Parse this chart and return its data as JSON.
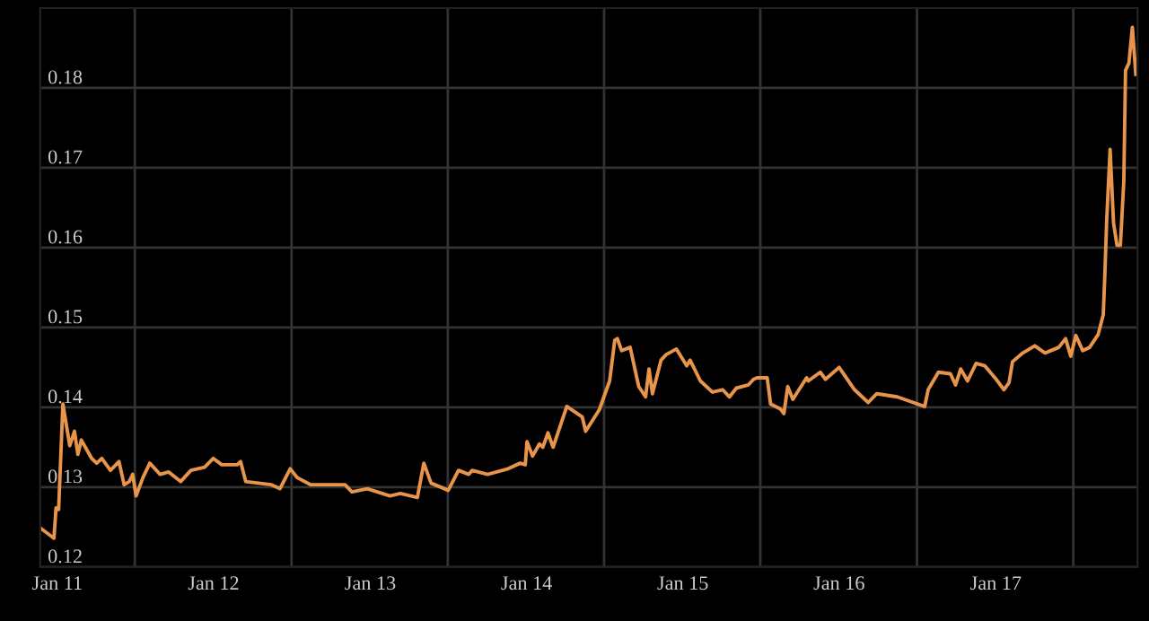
{
  "chart_data": {
    "type": "line",
    "color": "#e8944a",
    "x": [
      "2010-11-22",
      "2010-12-24",
      "2010-12-29",
      "2011-01-04",
      "2011-01-14",
      "2011-01-30",
      "2011-02-10",
      "2011-02-18",
      "2011-02-26",
      "2011-03-22",
      "2011-04-03",
      "2011-04-15",
      "2011-05-05",
      "2011-05-25",
      "2011-06-06",
      "2011-06-18",
      "2011-06-26",
      "2011-07-04",
      "2011-07-20",
      "2011-08-05",
      "2011-08-29",
      "2011-09-18",
      "2011-10-16",
      "2011-11-09",
      "2011-12-11",
      "2011-12-31",
      "2012-01-20",
      "2012-02-25",
      "2012-03-04",
      "2012-03-16",
      "2012-05-15",
      "2012-06-04",
      "2012-06-28",
      "2012-07-14",
      "2012-08-15",
      "2012-11-03",
      "2012-11-19",
      "2012-12-25",
      "2013-02-16",
      "2013-03-12",
      "2013-04-21",
      "2013-05-06",
      "2013-05-23",
      "2013-07-02",
      "2013-07-26",
      "2013-08-19",
      "2013-08-27",
      "2013-10-02",
      "2013-11-19",
      "2013-12-17",
      "2013-12-29",
      "2014-01-02",
      "2014-01-15",
      "2014-01-31",
      "2014-02-08",
      "2014-02-20",
      "2014-03-04",
      "2014-04-05",
      "2014-05-11",
      "2014-05-19",
      "2014-06-20",
      "2014-07-14",
      "2014-07-26",
      "2014-08-01",
      "2014-08-11",
      "2014-08-31",
      "2014-09-20",
      "2014-10-06",
      "2014-10-14",
      "2014-10-22",
      "2014-11-11",
      "2014-11-23",
      "2014-12-17",
      "2015-01-10",
      "2015-01-18",
      "2015-02-11",
      "2015-03-11",
      "2015-04-04",
      "2015-04-20",
      "2015-05-06",
      "2015-06-03",
      "2015-06-15",
      "2015-06-23",
      "2015-07-01",
      "2015-07-17",
      "2015-07-25",
      "2015-08-17",
      "2015-08-25",
      "2015-09-03",
      "2015-09-15",
      "2015-10-17",
      "2015-10-21",
      "2015-11-18",
      "2015-11-30",
      "2016-01-01",
      "2016-02-06",
      "2016-03-09",
      "2016-03-29",
      "2016-05-16",
      "2016-07-03",
      "2016-07-19",
      "2016-07-27",
      "2016-08-20",
      "2016-09-17",
      "2016-09-29",
      "2016-10-11",
      "2016-10-27",
      "2016-11-16",
      "2016-12-06",
      "2016-12-30",
      "2017-01-20",
      "2017-02-01",
      "2017-02-09",
      "2017-03-05",
      "2017-04-02",
      "2017-04-26",
      "2017-05-28",
      "2017-06-13",
      "2017-06-25",
      "2017-07-07",
      "2017-07-23",
      "2017-08-08",
      "2017-08-28",
      "2017-09-09",
      "2017-09-13",
      "2017-09-17",
      "2017-09-25",
      "2017-10-03",
      "2017-10-11",
      "2017-10-19",
      "2017-10-27",
      "2017-10-31",
      "2017-11-08",
      "2017-11-16",
      "2017-11-24"
    ],
    "values": [
      0.1249,
      0.1236,
      0.1274,
      0.1272,
      0.1404,
      0.1352,
      0.137,
      0.1341,
      0.1359,
      0.1336,
      0.133,
      0.1336,
      0.1321,
      0.1332,
      0.1303,
      0.1307,
      0.1316,
      0.1289,
      0.1312,
      0.133,
      0.1316,
      0.1319,
      0.1307,
      0.1321,
      0.1325,
      0.1336,
      0.1328,
      0.1328,
      0.1332,
      0.1307,
      0.1303,
      0.1298,
      0.1323,
      0.1312,
      0.1303,
      0.1303,
      0.1294,
      0.1298,
      0.1289,
      0.1292,
      0.1287,
      0.133,
      0.1305,
      0.1296,
      0.1321,
      0.1316,
      0.1321,
      0.1316,
      0.1323,
      0.133,
      0.1328,
      0.1357,
      0.1339,
      0.1354,
      0.135,
      0.1368,
      0.135,
      0.1401,
      0.1388,
      0.137,
      0.1397,
      0.1433,
      0.1484,
      0.1486,
      0.1471,
      0.1475,
      0.1426,
      0.1413,
      0.1448,
      0.1417,
      0.1459,
      0.1466,
      0.1473,
      0.1452,
      0.1459,
      0.1433,
      0.1419,
      0.1422,
      0.1413,
      0.1424,
      0.1428,
      0.1435,
      0.1437,
      0.1437,
      0.1437,
      0.1404,
      0.1398,
      0.1392,
      0.1426,
      0.141,
      0.1437,
      0.1433,
      0.1444,
      0.1435,
      0.145,
      0.1422,
      0.1406,
      0.1417,
      0.1413,
      0.1404,
      0.1401,
      0.1422,
      0.1444,
      0.1442,
      0.1428,
      0.1448,
      0.1433,
      0.1455,
      0.1452,
      0.1437,
      0.1422,
      0.1431,
      0.1457,
      0.1468,
      0.1477,
      0.1468,
      0.1475,
      0.1486,
      0.1464,
      0.149,
      0.1471,
      0.1475,
      0.1491,
      0.1516,
      0.157,
      0.1634,
      0.1723,
      0.1631,
      0.1603,
      0.1603,
      0.1683,
      0.1822,
      0.1831,
      0.1876,
      0.1817
    ],
    "xlim": [
      "2010-11-22",
      "2017-11-28"
    ],
    "xticks": [
      {
        "value": "2011-01-01",
        "label": "Jan 11"
      },
      {
        "value": "2011-07-01",
        "label": null
      },
      {
        "value": "2012-01-01",
        "label": "Jan 12"
      },
      {
        "value": "2012-07-01",
        "label": null
      },
      {
        "value": "2013-01-01",
        "label": "Jan 13"
      },
      {
        "value": "2013-07-01",
        "label": null
      },
      {
        "value": "2014-01-01",
        "label": "Jan 14"
      },
      {
        "value": "2014-07-01",
        "label": null
      },
      {
        "value": "2015-01-01",
        "label": "Jan 15"
      },
      {
        "value": "2015-07-01",
        "label": null
      },
      {
        "value": "2016-01-01",
        "label": "Jan 16"
      },
      {
        "value": "2016-07-01",
        "label": null
      },
      {
        "value": "2017-01-01",
        "label": "Jan 17"
      },
      {
        "value": "2017-07-01",
        "label": null
      }
    ],
    "ylim": [
      0.12,
      0.19
    ],
    "yticks": [
      0.12,
      0.13,
      0.14,
      0.15,
      0.16,
      0.17,
      0.18
    ],
    "grid": true
  }
}
